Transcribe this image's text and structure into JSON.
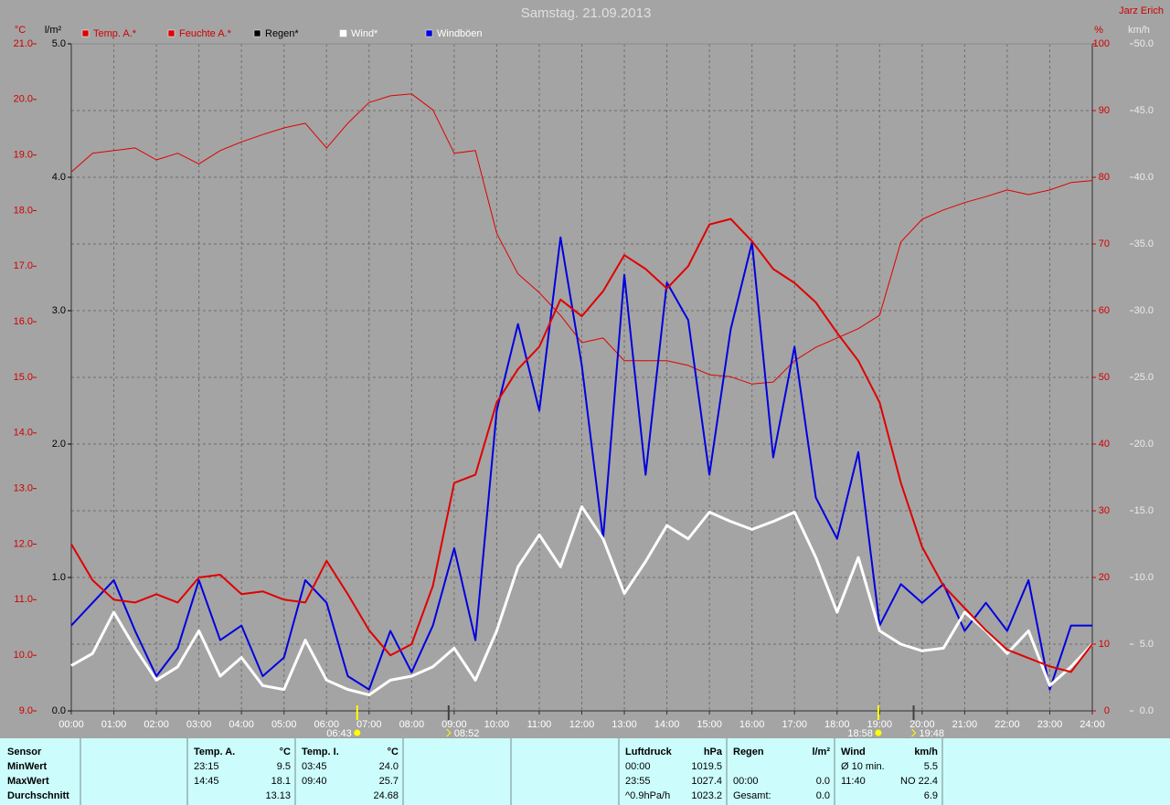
{
  "chart_data": {
    "type": "line",
    "title": "Samstag. 21.09.2013",
    "author": "Jarz Erich",
    "grid": true,
    "x": [
      0,
      0.5,
      1,
      1.5,
      2,
      2.5,
      3,
      3.5,
      4,
      4.5,
      5,
      5.5,
      6,
      6.5,
      7,
      7.5,
      8,
      8.5,
      9,
      9.5,
      10,
      10.5,
      11,
      11.5,
      12,
      12.5,
      13,
      13.5,
      14,
      14.5,
      15,
      15.5,
      16,
      16.5,
      17,
      17.5,
      18,
      18.5,
      19,
      19.5,
      20,
      20.5,
      21,
      21.5,
      22,
      22.5,
      23,
      23.5,
      24
    ],
    "xlim": [
      0,
      24
    ],
    "xticks": [
      {
        "value": 0,
        "label": "00:00"
      },
      {
        "value": 1,
        "label": "01:00"
      },
      {
        "value": 2,
        "label": "02:00"
      },
      {
        "value": 3,
        "label": "03:00"
      },
      {
        "value": 4,
        "label": "04:00"
      },
      {
        "value": 5,
        "label": "05:00"
      },
      {
        "value": 6,
        "label": "06:00"
      },
      {
        "value": 7,
        "label": "07:00"
      },
      {
        "value": 8,
        "label": "08:00"
      },
      {
        "value": 9,
        "label": "09:00"
      },
      {
        "value": 10,
        "label": "10:00"
      },
      {
        "value": 11,
        "label": "11:00"
      },
      {
        "value": 12,
        "label": "12:00"
      },
      {
        "value": 13,
        "label": "13:00"
      },
      {
        "value": 14,
        "label": "14:00"
      },
      {
        "value": 15,
        "label": "15:00"
      },
      {
        "value": 16,
        "label": "16:00"
      },
      {
        "value": 17,
        "label": "17:00"
      },
      {
        "value": 18,
        "label": "18:00"
      },
      {
        "value": 19,
        "label": "19:00"
      },
      {
        "value": 20,
        "label": "20:00"
      },
      {
        "value": 21,
        "label": "21:00"
      },
      {
        "value": 22,
        "label": "22:00"
      },
      {
        "value": 23,
        "label": "23:00"
      },
      {
        "value": 24,
        "label": "24:00"
      }
    ],
    "axes": {
      "temp": {
        "label": "°C",
        "color": "#d00000",
        "lim": [
          9,
          21
        ],
        "ticks": [
          {
            "value": 9,
            "label": "9.0"
          },
          {
            "value": 10,
            "label": "10.0"
          },
          {
            "value": 11,
            "label": "11.0"
          },
          {
            "value": 12,
            "label": "12.0"
          },
          {
            "value": 13,
            "label": "13.0"
          },
          {
            "value": 14,
            "label": "14.0"
          },
          {
            "value": 15,
            "label": "15.0"
          },
          {
            "value": 16,
            "label": "16.0"
          },
          {
            "value": 17,
            "label": "17.0"
          },
          {
            "value": 18,
            "label": "18.0"
          },
          {
            "value": 19,
            "label": "19.0"
          },
          {
            "value": 20,
            "label": "20.0"
          },
          {
            "value": 21,
            "label": "21.0"
          }
        ]
      },
      "rain": {
        "label": "l/m²",
        "color": "#000000",
        "lim": [
          0,
          5
        ],
        "ticks": [
          {
            "value": 0,
            "label": "0.0"
          },
          {
            "value": 1,
            "label": "1.0"
          },
          {
            "value": 2,
            "label": "2.0"
          },
          {
            "value": 3,
            "label": "3.0"
          },
          {
            "value": 4,
            "label": "4.0"
          },
          {
            "value": 5,
            "label": "5.0"
          }
        ]
      },
      "hum": {
        "label": "%",
        "color": "#d00000",
        "lim": [
          0,
          100
        ],
        "ticks": [
          0,
          10,
          20,
          30,
          40,
          50,
          60,
          70,
          80,
          90,
          100
        ]
      },
      "wind": {
        "label": "km/h",
        "color": "#ececec",
        "lim": [
          0,
          50
        ],
        "ticks": [
          {
            "value": 0,
            "label": "0.0"
          },
          {
            "value": 5,
            "label": "5.0"
          },
          {
            "value": 10,
            "label": "10.0"
          },
          {
            "value": 15,
            "label": "15.0"
          },
          {
            "value": 20,
            "label": "20.0"
          },
          {
            "value": 25,
            "label": "25.0"
          },
          {
            "value": 30,
            "label": "30.0"
          },
          {
            "value": 35,
            "label": "35.0"
          },
          {
            "value": 40,
            "label": "40.0"
          },
          {
            "value": 45,
            "label": "45.0"
          },
          {
            "value": 50,
            "label": "50.0"
          }
        ]
      }
    },
    "series": [
      {
        "name": "Temp. A.*",
        "color": "#e00000",
        "text_color": "#d00000",
        "axis": "temp",
        "width": 2,
        "values": [
          12.0,
          11.35,
          11.0,
          10.95,
          11.1,
          10.95,
          11.4,
          11.45,
          11.1,
          11.15,
          11.0,
          10.95,
          11.7,
          11.1,
          10.45,
          10.0,
          10.2,
          11.25,
          13.1,
          13.25,
          14.55,
          15.15,
          15.55,
          16.4,
          16.1,
          16.55,
          17.2,
          16.95,
          16.6,
          17.0,
          17.75,
          17.85,
          17.45,
          16.95,
          16.7,
          16.35,
          15.8,
          15.3,
          14.55,
          13.1,
          11.95,
          11.25,
          10.85,
          10.45,
          10.1,
          9.95,
          9.8,
          9.7,
          10.2
        ]
      },
      {
        "name": "Feuchte A.*",
        "color": "#e00000",
        "text_color": "#d00000",
        "axis": "hum",
        "width": 1,
        "values": [
          80.8,
          83.6,
          84,
          84.4,
          82.6,
          83.6,
          82,
          84,
          85.3,
          86.4,
          87.4,
          88.1,
          84.4,
          88.1,
          91.2,
          92.2,
          92.5,
          90.1,
          83.6,
          84,
          71.6,
          65.5,
          62.7,
          59.3,
          55.2,
          55.9,
          52.5,
          52.5,
          52.5,
          51.8,
          50.4,
          50.1,
          49,
          49.3,
          52.5,
          54.5,
          55.9,
          57.3,
          59.3,
          70.3,
          73.7,
          75.1,
          76.2,
          77.1,
          78.1,
          77.4,
          78.1,
          79.2,
          79.5
        ]
      },
      {
        "name": "Regen*",
        "color": "#000000",
        "text_color": "#000000",
        "axis": "rain"
      },
      {
        "name": "Wind*",
        "color": "#ffffff",
        "text_color": "#ffffff",
        "axis": "wind",
        "width": 3,
        "values": [
          3.4,
          4.3,
          7.4,
          4.7,
          2.3,
          3.3,
          6.0,
          2.6,
          4.0,
          1.9,
          1.6,
          5.3,
          2.3,
          1.6,
          1.2,
          2.3,
          2.6,
          3.3,
          4.7,
          2.3,
          6.0,
          10.8,
          13.2,
          10.8,
          15.3,
          12.9,
          8.8,
          11.2,
          13.9,
          12.9,
          14.9,
          14.2,
          13.6,
          14.2,
          14.9,
          11.5,
          7.4,
          11.5,
          6.0,
          5.0,
          4.5,
          4.7,
          7.4,
          6.0,
          4.3,
          6.0,
          1.9,
          3.3,
          5.0
        ]
      },
      {
        "name": "Windböen",
        "color": "#0000e0",
        "text_color": "#ffffff",
        "axis": "wind",
        "width": 2,
        "values": [
          6.4,
          8.1,
          9.8,
          6.0,
          2.6,
          4.7,
          9.8,
          5.3,
          6.4,
          2.6,
          4.0,
          9.8,
          8.1,
          2.6,
          1.6,
          6.0,
          2.9,
          6.4,
          12.2,
          5.3,
          22.5,
          29.0,
          22.5,
          35.5,
          25.9,
          12.9,
          32.7,
          17.7,
          32.1,
          29.3,
          17.7,
          28.6,
          35.1,
          19.0,
          27.3,
          16.0,
          12.9,
          19.4,
          6.4,
          9.5,
          8.1,
          9.5,
          6.0,
          8.1,
          6.0,
          9.8,
          1.6,
          6.4,
          6.4
        ]
      }
    ],
    "annotations": [
      {
        "x": 6.72,
        "label": "06:43",
        "color": "#ffff00",
        "kind": "sun"
      },
      {
        "x": 8.87,
        "label": "08:52",
        "color": "#404040",
        "kind": "moon"
      },
      {
        "x": 18.97,
        "label": "18:58",
        "color": "#ffff00",
        "kind": "sun"
      },
      {
        "x": 19.8,
        "label": "19:48",
        "color": "#404040",
        "kind": "moon"
      }
    ]
  },
  "stats_table": {
    "label_column": {
      "header": "Sensor",
      "rows": [
        "MinWert",
        "MaxWert",
        "Durchschnitt"
      ]
    },
    "panels": [
      {
        "header": "Temp. A.",
        "unit": "°C",
        "rows": [
          [
            "23:15",
            "9.5"
          ],
          [
            "14:45",
            "18.1"
          ],
          [
            "13.13"
          ]
        ]
      },
      {
        "header": "Temp. I.",
        "unit": "°C",
        "rows": [
          [
            "03:45",
            "24.0"
          ],
          [
            "09:40",
            "25.7"
          ],
          [
            "24.68"
          ]
        ]
      },
      {
        "header": "Luftdruck",
        "unit": "hPa",
        "rows": [
          [
            "00:00",
            "1019.5"
          ],
          [
            "23:55",
            "1027.4"
          ],
          [
            "^0.9hPa/h",
            "1023.2"
          ]
        ]
      },
      {
        "header": "Regen",
        "unit": "l/m²",
        "rows": [
          null,
          [
            "00:00",
            "0.0"
          ],
          [
            "Gesamt:",
            "0.0"
          ]
        ]
      },
      {
        "header": "Wind",
        "unit": "km/h",
        "rows": [
          [
            "Ø 10 min.",
            "5.5"
          ],
          [
            "11:40",
            "NO 22.4"
          ],
          [
            "6.9"
          ]
        ]
      }
    ]
  }
}
